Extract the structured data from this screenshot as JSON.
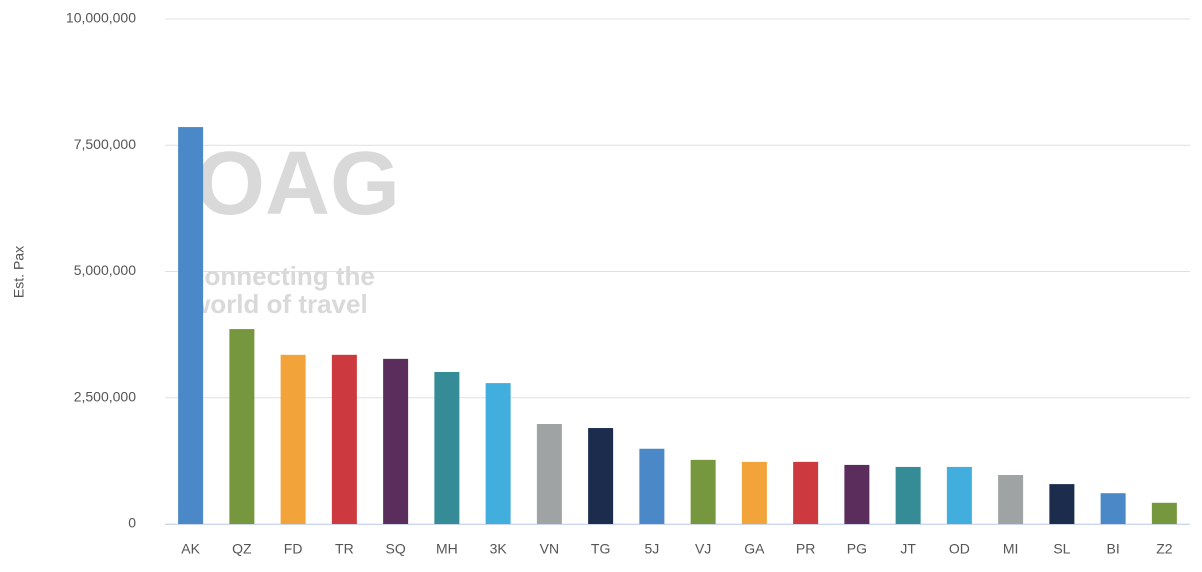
{
  "chart_data": {
    "type": "bar",
    "y_label": "Est. Pax",
    "watermark": [
      "OAG",
      "connecting the",
      "world of travel"
    ],
    "categories": [
      "AK",
      "QZ",
      "FD",
      "TR",
      "SQ",
      "MH",
      "3K",
      "VN",
      "TG",
      "5J",
      "VJ",
      "GA",
      "PR",
      "PG",
      "JT",
      "OD",
      "MI",
      "SL",
      "BI",
      "Z2"
    ],
    "values": [
      7860000,
      3860000,
      3350000,
      3350000,
      3270000,
      3010000,
      2790000,
      1980000,
      1900000,
      1490000,
      1270000,
      1230000,
      1230000,
      1170000,
      1130000,
      1130000,
      970000,
      790000,
      610000,
      420000
    ],
    "colors": [
      "#4a88c8",
      "#77973f",
      "#f2a43a",
      "#cc3a3f",
      "#5b2d5c",
      "#358c97",
      "#41aede",
      "#9fa3a4",
      "#1b2c4d",
      "#4a88c8",
      "#77973f",
      "#f2a43a",
      "#cc3a3f",
      "#5b2d5c",
      "#358c97",
      "#41aede",
      "#9fa3a4",
      "#1b2c4d",
      "#4a88c8",
      "#77973f"
    ],
    "ylim": [
      0,
      10000000
    ],
    "yticks": [
      0,
      {
        "value": 2500000,
        "label": "2,500,000"
      },
      {
        "value": 5000000,
        "label": "5,000,000"
      },
      {
        "value": 7500000,
        "label": "7,500,000"
      },
      {
        "value": 10000000,
        "label": "10,000,000"
      }
    ],
    "grid": true
  }
}
